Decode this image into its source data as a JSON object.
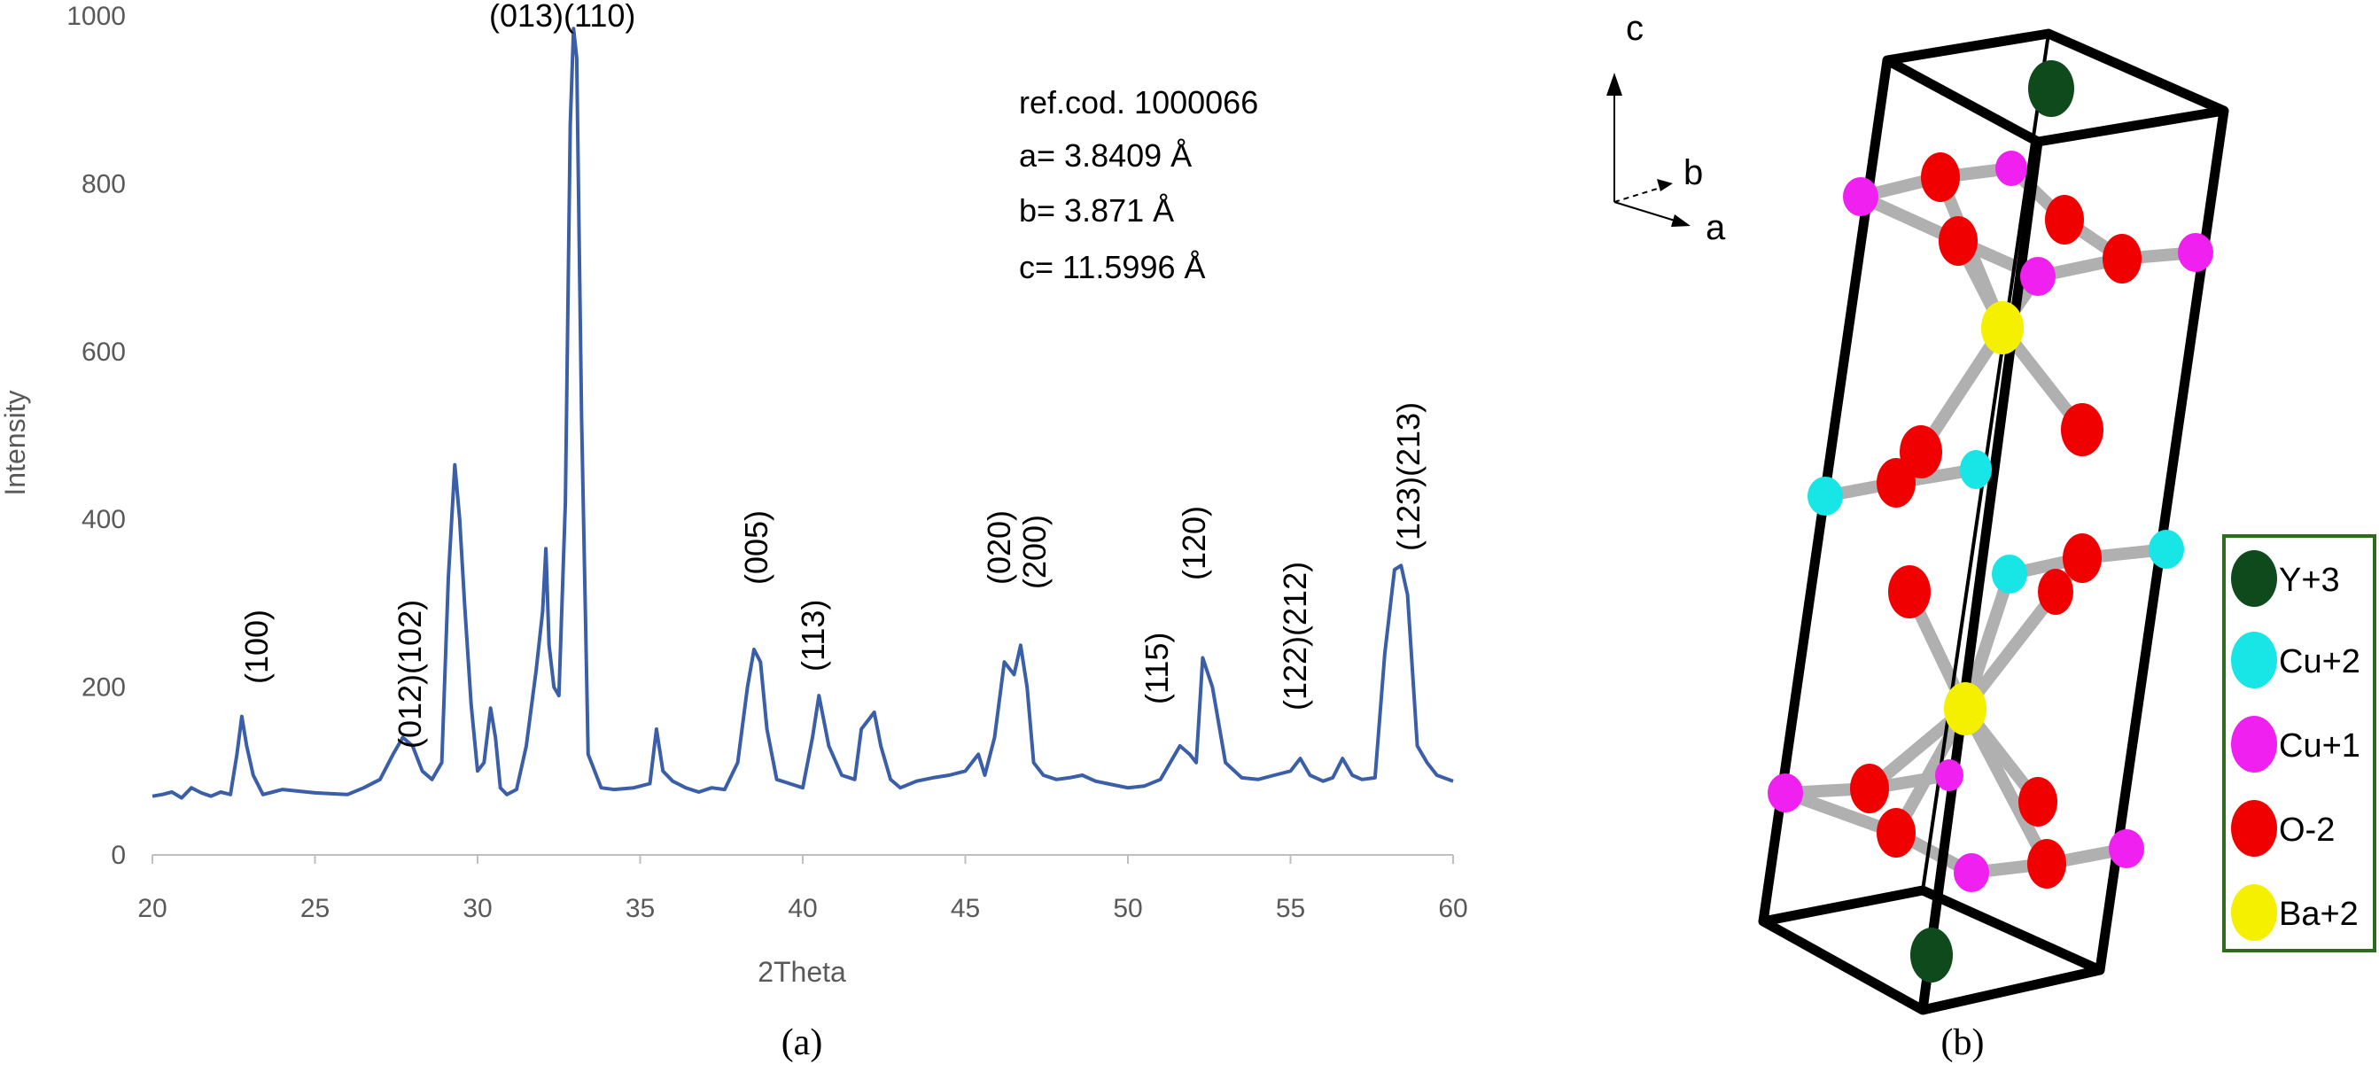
{
  "chart_data": {
    "type": "line",
    "xlabel": "2Theta",
    "ylabel": "Intensity",
    "xlim": [
      20,
      60
    ],
    "ylim": [
      0,
      1000
    ],
    "xticks": [
      20,
      25,
      30,
      35,
      40,
      45,
      50,
      55,
      60
    ],
    "yticks": [
      0,
      200,
      400,
      600,
      800,
      1000
    ],
    "line_color": "#3a5ea8",
    "series": [
      {
        "x": [
          20.0,
          20.3,
          20.6,
          20.9,
          21.2,
          21.5,
          21.8,
          22.1,
          22.4,
          22.6,
          22.75,
          22.9,
          23.1,
          23.4,
          23.7,
          24.0,
          24.5,
          25.0,
          25.5,
          26.0,
          26.5,
          27.0,
          27.4,
          27.7,
          28.0,
          28.3,
          28.6,
          28.9,
          29.1,
          29.3,
          29.45,
          29.6,
          29.8,
          30.0,
          30.2,
          30.4,
          30.55,
          30.7,
          30.9,
          31.2,
          31.5,
          31.8,
          32.0,
          32.1,
          32.2,
          32.35,
          32.5,
          32.7,
          32.85,
          32.95,
          33.05,
          33.2,
          33.4,
          33.8,
          34.2,
          34.8,
          35.3,
          35.5,
          35.7,
          36.0,
          36.4,
          36.8,
          37.2,
          37.6,
          38.0,
          38.3,
          38.5,
          38.7,
          38.9,
          39.2,
          39.6,
          40.0,
          40.3,
          40.5,
          40.8,
          41.2,
          41.6,
          41.8,
          42.0,
          42.2,
          42.4,
          42.7,
          43.0,
          43.5,
          44.0,
          44.5,
          45.0,
          45.4,
          45.6,
          45.9,
          46.2,
          46.5,
          46.7,
          46.9,
          47.1,
          47.4,
          47.8,
          48.2,
          48.6,
          49.0,
          49.5,
          50.0,
          50.5,
          51.0,
          51.3,
          51.6,
          51.9,
          52.1,
          52.3,
          52.6,
          53.0,
          53.5,
          54.0,
          54.5,
          55.0,
          55.3,
          55.6,
          56.0,
          56.3,
          56.6,
          56.9,
          57.2,
          57.6,
          57.9,
          58.2,
          58.4,
          58.6,
          58.9,
          59.2,
          59.5,
          60.0
        ],
        "y": [
          70,
          72,
          75,
          68,
          80,
          74,
          70,
          75,
          72,
          120,
          165,
          130,
          95,
          72,
          75,
          78,
          76,
          74,
          73,
          72,
          80,
          90,
          120,
          140,
          130,
          100,
          90,
          110,
          330,
          465,
          400,
          300,
          180,
          100,
          110,
          175,
          140,
          80,
          72,
          78,
          130,
          220,
          290,
          365,
          250,
          200,
          190,
          420,
          870,
          985,
          950,
          520,
          120,
          80,
          78,
          80,
          85,
          150,
          100,
          88,
          80,
          75,
          80,
          78,
          110,
          200,
          245,
          230,
          150,
          90,
          85,
          80,
          140,
          190,
          130,
          95,
          90,
          150,
          160,
          170,
          130,
          90,
          80,
          88,
          92,
          95,
          100,
          120,
          95,
          140,
          230,
          215,
          250,
          200,
          110,
          95,
          90,
          92,
          95,
          88,
          84,
          80,
          82,
          90,
          110,
          130,
          120,
          110,
          235,
          200,
          110,
          92,
          90,
          95,
          100,
          115,
          95,
          88,
          92,
          115,
          95,
          90,
          92,
          240,
          340,
          345,
          310,
          130,
          110,
          95,
          88
        ]
      }
    ],
    "peak_labels": [
      "(100)",
      "(012)(102)",
      "(013)(110)",
      "(005)",
      "(113)",
      "(020)",
      "(200)",
      "(115)",
      "(120)",
      "(122)(212)",
      "(123)(213)"
    ],
    "annotation": {
      "ref": "ref.cod. 1000066",
      "a": "a= 3.8409 Å",
      "b": "b= 3.871 Å",
      "c": "c= 11.5996 Å"
    },
    "panel_label": "(a)"
  },
  "structure": {
    "panel_label": "(b)",
    "axes": {
      "c": "c",
      "b": "b",
      "a": "a"
    },
    "legend": [
      {
        "label": "Y+3",
        "color": "#0f4a1c"
      },
      {
        "label": "Cu+2",
        "color": "#18e6e6"
      },
      {
        "label": "Cu+1",
        "color": "#f020f0"
      },
      {
        "label": "O-2",
        "color": "#f00000"
      },
      {
        "label": "Ba+2",
        "color": "#f5f000"
      }
    ],
    "legend_border_color": "#2e6b1e"
  }
}
